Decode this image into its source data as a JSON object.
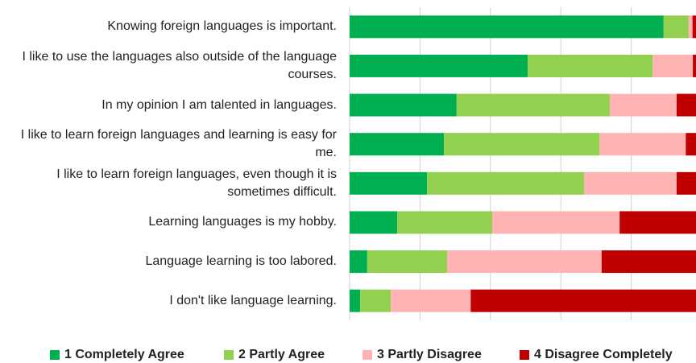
{
  "chart_data": {
    "type": "stacked-bar-horizontal",
    "categories": [
      "Knowing foreign languages is important.",
      "I like to use the languages also outside of the language courses.",
      "In my opinion I am talented in languages.",
      "I like to learn foreign languages and learning is easy for me.",
      "I like to learn foreign languages, even though it is sometimes difficult.",
      "Learning languages is my hobby.",
      "Language learning is too labored.",
      "I don't like language learning."
    ],
    "series": [
      {
        "name": "1 Completely Agree",
        "color": "#00b050",
        "values": [
          89.2,
          50.6,
          30.4,
          26.8,
          22.0,
          13.5,
          5.0,
          3.0
        ]
      },
      {
        "name": "2 Partly Agree",
        "color": "#92d050",
        "values": [
          7.1,
          35.5,
          43.5,
          44.2,
          44.6,
          27.0,
          22.7,
          8.7
        ]
      },
      {
        "name": "3 Partly Disagree",
        "color": "#ffb3b3",
        "values": [
          1.1,
          11.4,
          19.0,
          24.5,
          26.3,
          36.2,
          43.9,
          22.7
        ]
      },
      {
        "name": "4 Disagree Completely",
        "color": "#c00000",
        "values": [
          2.5,
          2.5,
          7.1,
          4.6,
          7.1,
          23.3,
          28.4,
          65.7
        ]
      }
    ],
    "xlim": [
      0,
      100
    ],
    "xticks": [
      0,
      20,
      40,
      60,
      80,
      100
    ],
    "grid": true
  }
}
